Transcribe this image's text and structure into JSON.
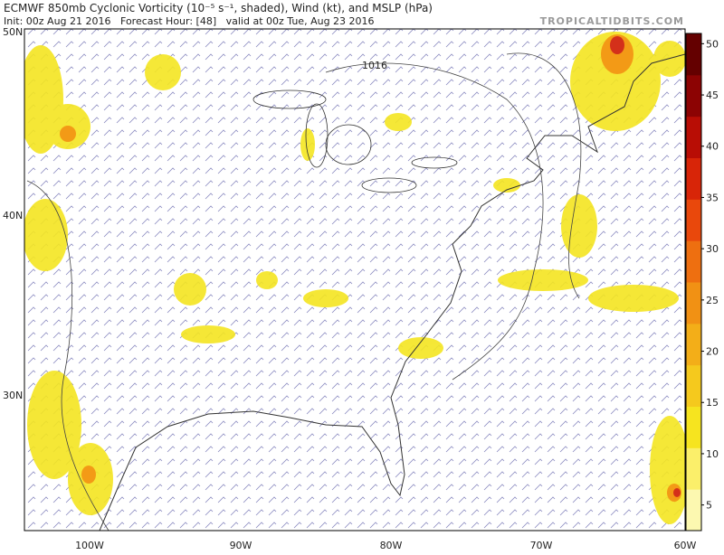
{
  "header": {
    "title": "ECMWF 850mb Cyclonic Vorticity (10⁻⁵ s⁻¹, shaded), Wind (kt), and MSLP (hPa)",
    "subtitle": "Init: 00z Aug 21 2016   Forecast Hour: [48]   valid at 00z Tue, Aug 23 2016",
    "credit": "TROPICALTIDBITS.COM"
  },
  "map": {
    "lat_labels": [
      "50N",
      "40N",
      "30N"
    ],
    "lon_labels": [
      "100W",
      "90W",
      "80W",
      "70W",
      "60W"
    ],
    "contour_label": "1016"
  },
  "colorbar": {
    "range": [
      2.5,
      51
    ],
    "ticks": [
      5,
      10,
      15,
      20,
      25,
      30,
      35,
      40,
      45,
      50
    ]
  }
}
